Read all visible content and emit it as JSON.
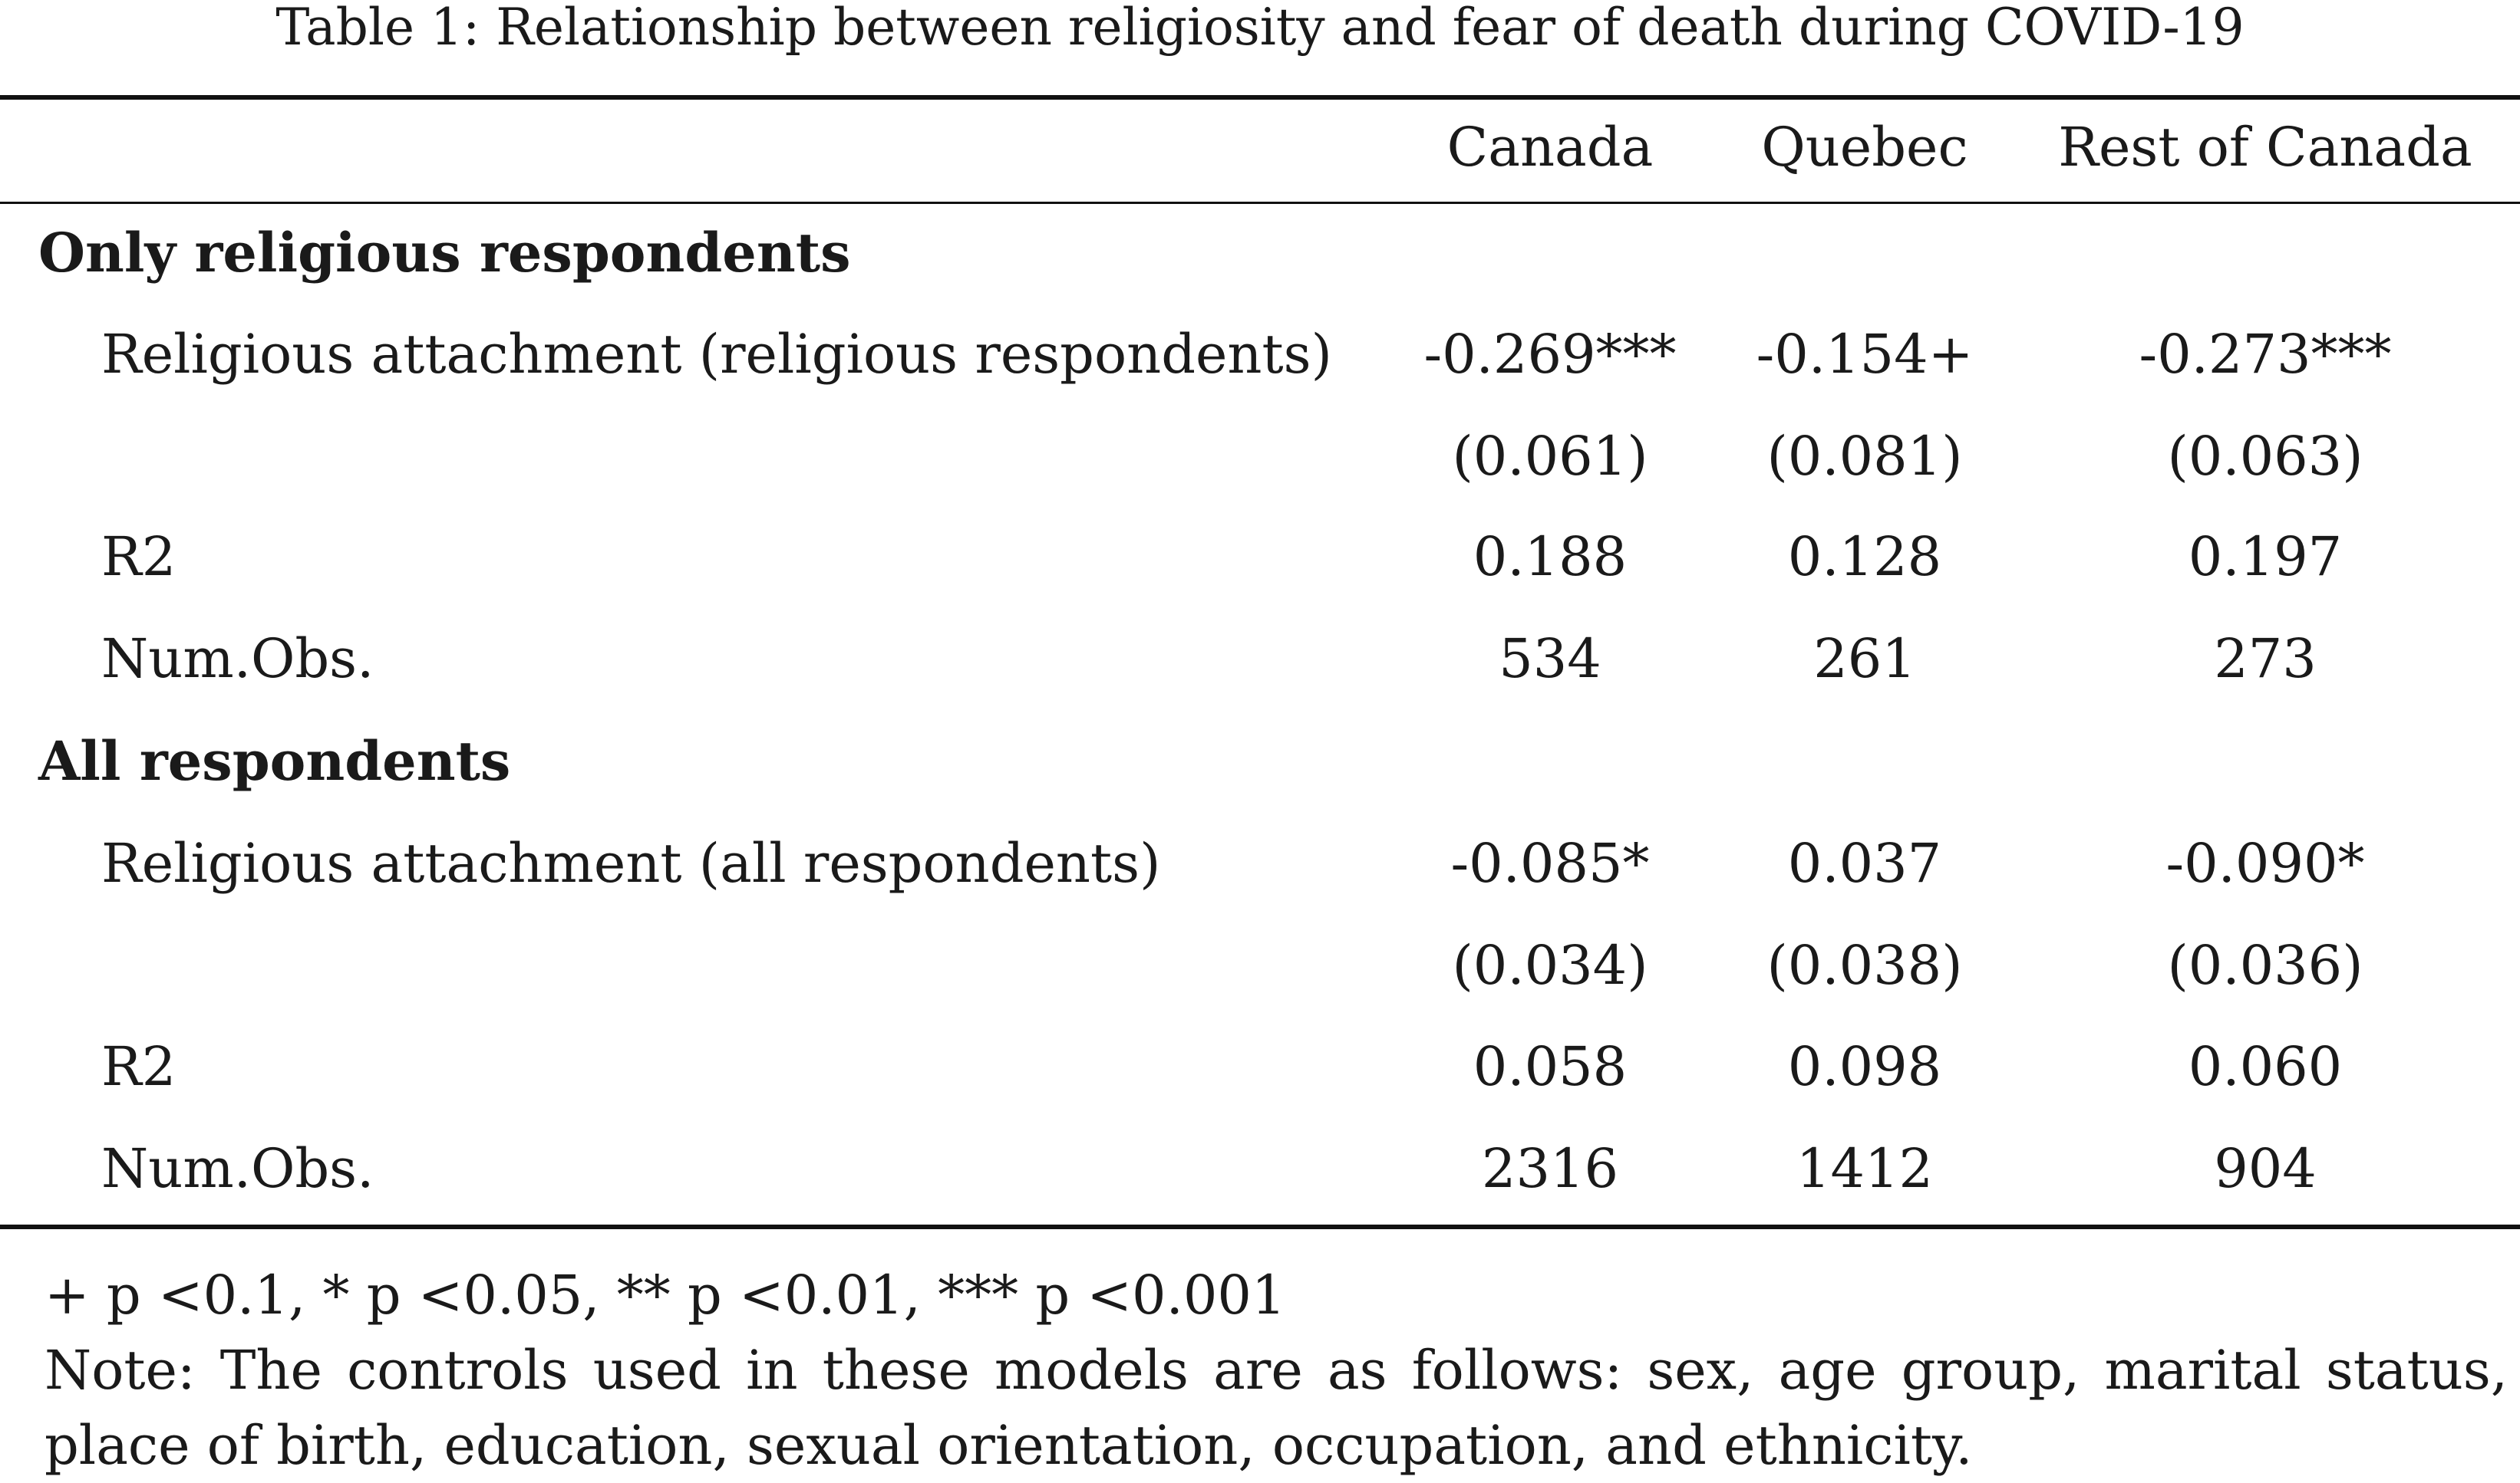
{
  "table": {
    "caption": "Table 1: Relationship between religiosity and fear of death during COVID-19",
    "columns": [
      "Canada",
      "Quebec",
      "Rest of Canada"
    ],
    "sections": [
      {
        "title": "Only religious respondents",
        "rows": [
          {
            "label": "Religious attachment (religious respondents)",
            "values": [
              "-0.269***",
              "-0.154+",
              "-0.273***"
            ]
          },
          {
            "label": "",
            "values": [
              "(0.061)",
              "(0.081)",
              "(0.063)"
            ]
          },
          {
            "label": "R2",
            "values": [
              "0.188",
              "0.128",
              "0.197"
            ]
          },
          {
            "label": "Num.Obs.",
            "values": [
              "534",
              "261",
              "273"
            ]
          }
        ]
      },
      {
        "title": "All respondents",
        "rows": [
          {
            "label": "Religious attachment (all respondents)",
            "values": [
              "-0.085*",
              "0.037",
              "-0.090*"
            ]
          },
          {
            "label": "",
            "values": [
              "(0.034)",
              "(0.038)",
              "(0.036)"
            ]
          },
          {
            "label": "R2",
            "values": [
              "0.058",
              "0.098",
              "0.060"
            ]
          },
          {
            "label": "Num.Obs.",
            "values": [
              "2316",
              "1412",
              "904"
            ]
          }
        ]
      }
    ],
    "footnotes": {
      "significance": "+ p <0.1, * p <0.05, ** p <0.01, *** p <0.001",
      "note_line1": "Note: The controls used in these models are as follows: sex, age group, marital status,",
      "note_line2": "place of birth, education, sexual orientation, occupation, and ethnicity."
    }
  }
}
